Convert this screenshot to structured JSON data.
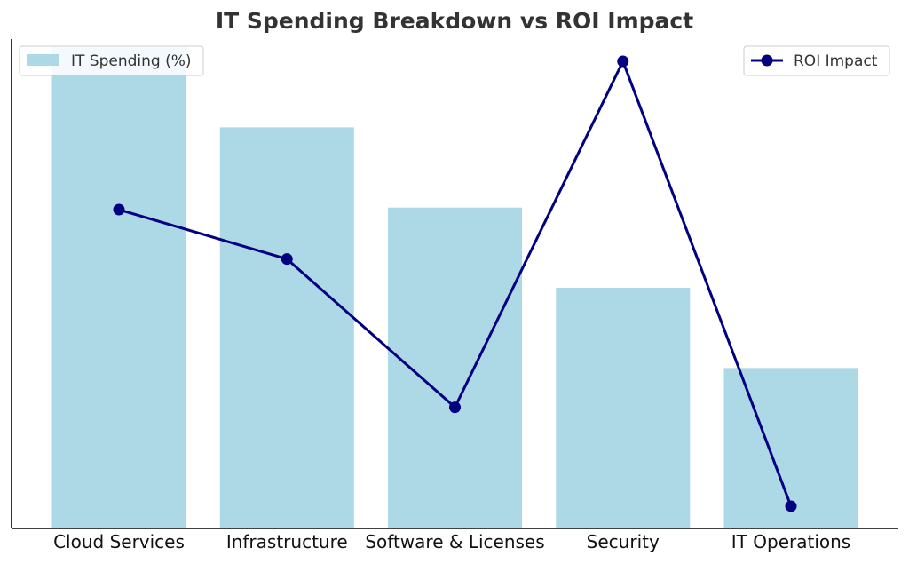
{
  "chart_data": {
    "type": "bar+line",
    "title": "IT Spending Breakdown vs ROI Impact",
    "xlabel": "",
    "ylabel": "",
    "categories": [
      "Cloud Services",
      "Infrastructure",
      "Software & Licenses",
      "Security",
      "IT Operations"
    ],
    "series": [
      {
        "name": "IT Spending (%)",
        "type": "bar",
        "values": [
          30,
          25,
          20,
          15,
          10
        ],
        "color": "#add8e6",
        "axis": "left",
        "ylim": [
          0,
          30.5
        ]
      },
      {
        "name": "ROI Impact",
        "type": "line",
        "values": [
          20,
          18,
          12,
          26,
          8
        ],
        "color": "#000080",
        "axis": "right",
        "ylim": [
          7.1,
          26.9
        ]
      }
    ],
    "grid": false,
    "legends": [
      "top-left",
      "top-right"
    ]
  }
}
